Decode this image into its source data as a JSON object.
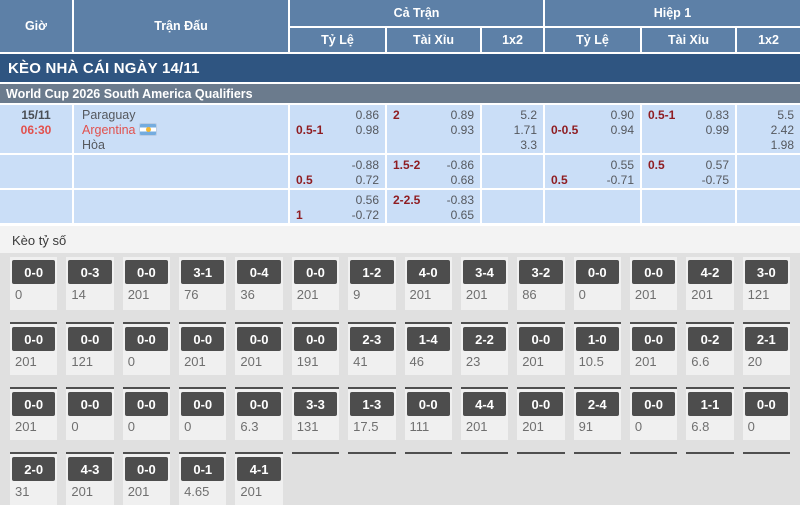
{
  "table": {
    "headers": {
      "time": "Giờ",
      "match": "Trận Đấu",
      "full_time": "Cả Trận",
      "first_half": "Hiệp 1",
      "handicap": "Tỷ Lệ",
      "over_under": "Tài Xỉu",
      "one_x_two": "1x2"
    },
    "date_bar": "KÈO NHÀ CÁI NGÀY 14/11",
    "league_bar": "World Cup 2026 South America Qualifiers",
    "match": {
      "date": "15/11",
      "time": "06:30",
      "home": "Paraguay",
      "away": "Argentina",
      "draw_label": "Hòa",
      "away_flag": "argentina-flag"
    },
    "odds_rows": [
      {
        "ft_hdp": {
          "hcp": "0.5-1",
          "hcp_on": "bottom",
          "v1": "0.86",
          "v2": "0.98"
        },
        "ft_ou": {
          "hcp": "2",
          "hcp_on": "top",
          "v1": "0.89",
          "v2": "0.93"
        },
        "ft_1x2": [
          "5.2",
          "1.71",
          "3.3"
        ],
        "h1_hdp": {
          "hcp": "0-0.5",
          "hcp_on": "bottom",
          "v1": "0.90",
          "v2": "0.94"
        },
        "h1_ou": {
          "hcp": "0.5-1",
          "hcp_on": "top",
          "v1": "0.83",
          "v2": "0.99"
        },
        "h1_1x2": [
          "5.5",
          "2.42",
          "1.98"
        ]
      },
      {
        "ft_hdp": {
          "hcp": "0.5",
          "hcp_on": "bottom",
          "v1": "-0.88",
          "v2": "0.72"
        },
        "ft_ou": {
          "hcp": "1.5-2",
          "hcp_on": "top",
          "v1": "-0.86",
          "v2": "0.68"
        },
        "ft_1x2": [],
        "h1_hdp": {
          "hcp": "0.5",
          "hcp_on": "bottom",
          "v1": "0.55",
          "v2": "-0.71"
        },
        "h1_ou": {
          "hcp": "0.5",
          "hcp_on": "top",
          "v1": "0.57",
          "v2": "-0.75"
        },
        "h1_1x2": []
      },
      {
        "ft_hdp": {
          "hcp": "1",
          "hcp_on": "bottom",
          "v1": "0.56",
          "v2": "-0.72"
        },
        "ft_ou": {
          "hcp": "2-2.5",
          "hcp_on": "top",
          "v1": "-0.83",
          "v2": "0.65"
        },
        "ft_1x2": [],
        "h1_hdp": null,
        "h1_ou": null,
        "h1_1x2": []
      }
    ]
  },
  "score_section": {
    "title": "Kèo tỷ số",
    "rows": [
      [
        {
          "score": "0-0",
          "odds": "0"
        },
        {
          "score": "0-3",
          "odds": "14"
        },
        {
          "score": "0-0",
          "odds": "201"
        },
        {
          "score": "3-1",
          "odds": "76"
        },
        {
          "score": "0-4",
          "odds": "36"
        },
        {
          "score": "0-0",
          "odds": "201"
        },
        {
          "score": "1-2",
          "odds": "9"
        },
        {
          "score": "4-0",
          "odds": "201"
        },
        {
          "score": "3-4",
          "odds": "201"
        },
        {
          "score": "3-2",
          "odds": "86"
        },
        {
          "score": "0-0",
          "odds": "0"
        },
        {
          "score": "0-0",
          "odds": "201"
        },
        {
          "score": "4-2",
          "odds": "201"
        },
        {
          "score": "3-0",
          "odds": "121"
        }
      ],
      [
        {
          "score": "0-0",
          "odds": "201"
        },
        {
          "score": "0-0",
          "odds": "121"
        },
        {
          "score": "0-0",
          "odds": "0"
        },
        {
          "score": "0-0",
          "odds": "201"
        },
        {
          "score": "0-0",
          "odds": "201"
        },
        {
          "score": "0-0",
          "odds": "191"
        },
        {
          "score": "2-3",
          "odds": "41"
        },
        {
          "score": "1-4",
          "odds": "46"
        },
        {
          "score": "2-2",
          "odds": "23"
        },
        {
          "score": "0-0",
          "odds": "201"
        },
        {
          "score": "1-0",
          "odds": "10.5"
        },
        {
          "score": "0-0",
          "odds": "201"
        },
        {
          "score": "0-2",
          "odds": "6.6"
        },
        {
          "score": "2-1",
          "odds": "20"
        }
      ],
      [
        {
          "score": "0-0",
          "odds": "201"
        },
        {
          "score": "0-0",
          "odds": "0"
        },
        {
          "score": "0-0",
          "odds": "0"
        },
        {
          "score": "0-0",
          "odds": "0"
        },
        {
          "score": "0-0",
          "odds": "6.3"
        },
        {
          "score": "3-3",
          "odds": "131"
        },
        {
          "score": "1-3",
          "odds": "17.5"
        },
        {
          "score": "0-0",
          "odds": "111"
        },
        {
          "score": "4-4",
          "odds": "201"
        },
        {
          "score": "0-0",
          "odds": "201"
        },
        {
          "score": "2-4",
          "odds": "91"
        },
        {
          "score": "0-0",
          "odds": "0"
        },
        {
          "score": "1-1",
          "odds": "6.8"
        },
        {
          "score": "0-0",
          "odds": "0"
        }
      ],
      [
        {
          "score": "2-0",
          "odds": "31"
        },
        {
          "score": "4-3",
          "odds": "201"
        },
        {
          "score": "0-0",
          "odds": "201"
        },
        {
          "score": "0-1",
          "odds": "4.65"
        },
        {
          "score": "4-1",
          "odds": "201"
        },
        null,
        null,
        null,
        null,
        null,
        null,
        null,
        null,
        null
      ]
    ]
  },
  "colors": {
    "header_bg": "#5d80a7",
    "date_bar_bg": "#2f5581",
    "league_bar_bg": "#6b7b8d",
    "cell_bg": "#cadef7",
    "handicap_text": "#8f1d22",
    "odds_text": "#55585e",
    "time_text": "#e2504d",
    "score_box_bg": "#4d4d4d",
    "score_strip_bg": "#f0f0f0"
  }
}
